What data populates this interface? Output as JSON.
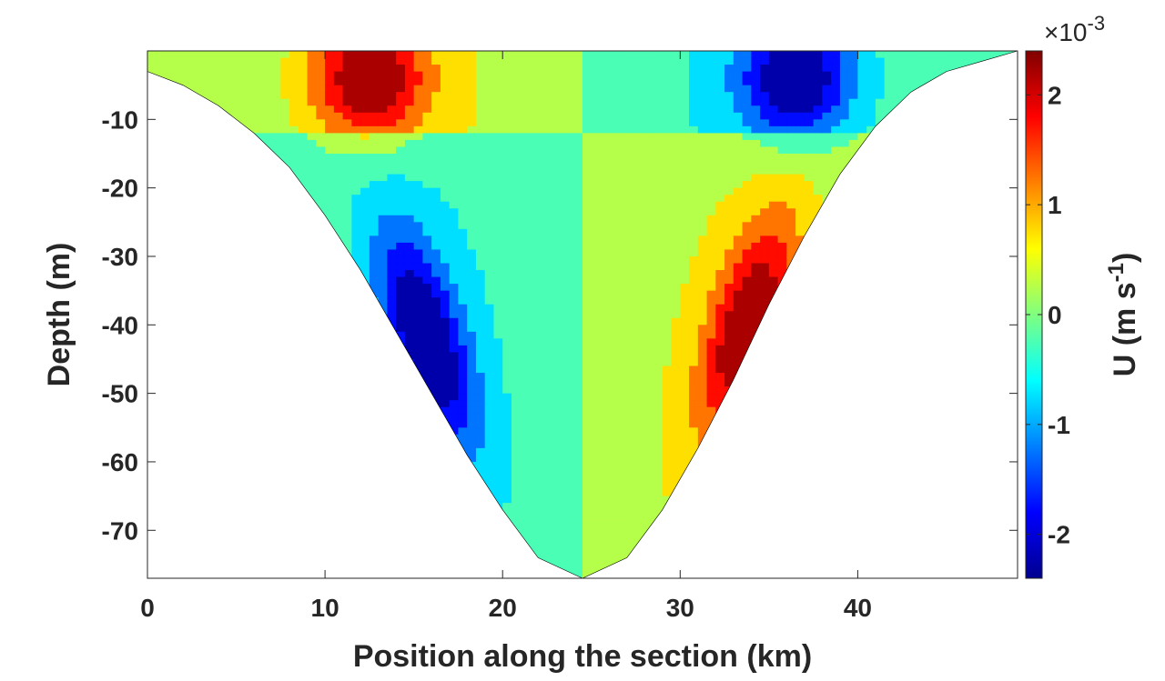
{
  "chart_data": {
    "type": "contourf",
    "xlabel": "Position along the section (km)",
    "ylabel": "Depth (m)",
    "xlim": [
      0,
      49
    ],
    "ylim": [
      -77,
      0
    ],
    "x_ticks": [
      0,
      10,
      20,
      30,
      40
    ],
    "x_tick_labels": [
      "0",
      "10",
      "20",
      "30",
      "40"
    ],
    "y_ticks": [
      -10,
      -20,
      -30,
      -40,
      -50,
      -60,
      -70
    ],
    "y_tick_labels": [
      "-10",
      "-20",
      "-30",
      "-40",
      "-50",
      "-60",
      "-70"
    ],
    "bathymetry": {
      "x": [
        0,
        2,
        4,
        6,
        8,
        10,
        12,
        14,
        16,
        18,
        20,
        22,
        24.5,
        27,
        29,
        31,
        33,
        35,
        37,
        39,
        41,
        43,
        45,
        47,
        49
      ],
      "depth": [
        -3,
        -5,
        -8,
        -12,
        -17,
        -24,
        -32,
        -41,
        -50,
        -59,
        -67,
        -74,
        -77,
        -74,
        -67,
        -58,
        -48,
        -37,
        -27,
        -18,
        -11,
        -6,
        -3,
        -1.5,
        0
      ]
    },
    "colorbar": {
      "label": "U (m s",
      "label_superscript": "-1",
      "label_close": ")",
      "multiplier_prefix": "×10",
      "multiplier_exponent": "-3",
      "range": [
        -2.4,
        2.4
      ],
      "ticks": [
        2,
        1,
        0,
        -1,
        -2
      ],
      "tick_labels": [
        "2",
        "1",
        "0",
        "-1",
        "-2"
      ],
      "colormap": "jet",
      "levels": [
        -2.4,
        -2.0,
        -1.5,
        -1.0,
        -0.5,
        0,
        0.5,
        1.0,
        1.5,
        2.0,
        2.4
      ]
    },
    "features": [
      {
        "name": "surface positive core",
        "x": 12.5,
        "depth": -4,
        "peak": 2.2
      },
      {
        "name": "surface negative core",
        "x": 36.5,
        "depth": -4,
        "peak": -2.2
      },
      {
        "name": "deep negative core",
        "x": 15.5,
        "depth": -40,
        "peak": -2.2
      },
      {
        "name": "deep positive core",
        "x": 34,
        "depth": -38,
        "peak": 2.1
      }
    ]
  }
}
